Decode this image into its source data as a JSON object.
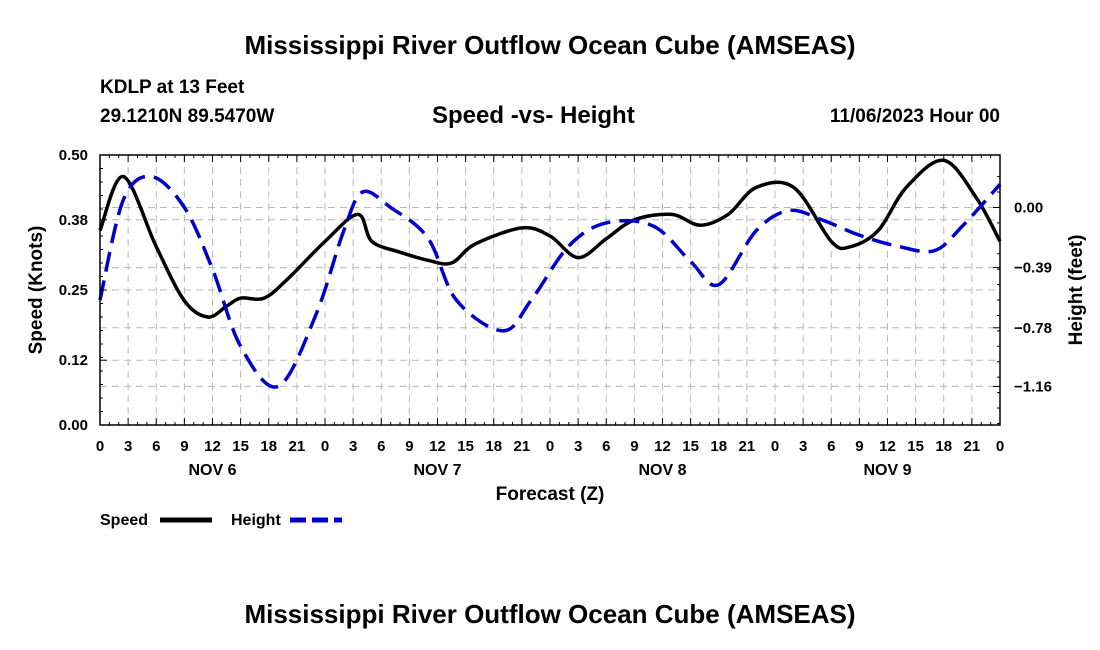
{
  "header": {
    "title": "Mississippi River Outflow Ocean Cube (AMSEAS)",
    "station": "KDLP at 13 Feet",
    "coords": "29.1210N  89.5470W",
    "datetime": "11/06/2023 Hour 00"
  },
  "footer": {
    "title": "Mississippi River Outflow Ocean Cube (AMSEAS)"
  },
  "chart_data": {
    "type": "line",
    "title": "Speed -vs- Height",
    "xlabel": "Forecast (Z)",
    "ylabel": "Speed (Knots)",
    "y2label": "Height (feet)",
    "x_tick_labels": [
      "0",
      "3",
      "6",
      "9",
      "12",
      "15",
      "18",
      "21",
      "0",
      "3",
      "6",
      "9",
      "12",
      "15",
      "18",
      "21",
      "0",
      "3",
      "6",
      "9",
      "12",
      "15",
      "18",
      "21",
      "0",
      "3",
      "6",
      "9",
      "12",
      "15",
      "18",
      "21",
      "0"
    ],
    "day_labels": [
      {
        "label": "NOV 6",
        "hour": 12
      },
      {
        "label": "NOV 7",
        "hour": 36
      },
      {
        "label": "NOV 8",
        "hour": 60
      },
      {
        "label": "NOV 9",
        "hour": 84
      }
    ],
    "xlim": [
      0,
      96
    ],
    "ylim": [
      0,
      0.5
    ],
    "y_ticks": [
      0.0,
      0.12,
      0.25,
      0.38,
      0.5
    ],
    "y_tick_labels": [
      "0.00",
      "0.12",
      "0.25",
      "0.38",
      "0.50"
    ],
    "y2lim": [
      -1.41,
      0.34
    ],
    "y2_ticks": [
      -1.16,
      -0.78,
      -0.39,
      0.0
    ],
    "y2_tick_labels": [
      "−1.16",
      "−0.78",
      "−0.39",
      "0.00"
    ],
    "grid": true,
    "legend": "bottom-left",
    "series": [
      {
        "name": "Speed",
        "axis": "left",
        "color": "#000000",
        "style": "solid",
        "x": [
          0,
          2.5,
          6,
          9,
          11.5,
          13.5,
          15,
          17.5,
          20,
          24,
          27.5,
          29,
          32,
          35,
          37.5,
          40,
          45,
          48,
          51,
          54,
          57,
          61,
          64,
          67,
          70,
          74,
          78,
          80,
          83,
          86,
          90,
          93.5,
          96
        ],
        "values": [
          0.36,
          0.46,
          0.33,
          0.23,
          0.2,
          0.22,
          0.235,
          0.235,
          0.27,
          0.34,
          0.39,
          0.34,
          0.32,
          0.305,
          0.3,
          0.335,
          0.365,
          0.35,
          0.31,
          0.345,
          0.38,
          0.39,
          0.37,
          0.39,
          0.44,
          0.44,
          0.34,
          0.33,
          0.36,
          0.44,
          0.49,
          0.42,
          0.34
        ]
      },
      {
        "name": "Height",
        "axis": "right",
        "color": "#0000cc",
        "style": "dashed",
        "x": [
          0,
          2.5,
          5.5,
          9,
          12,
          15,
          19,
          23,
          26,
          28,
          31,
          35,
          38,
          43,
          46,
          50,
          54,
          59,
          63,
          66,
          70,
          73.5,
          77,
          81,
          85,
          89,
          92,
          96
        ],
        "values": [
          -0.6,
          0.05,
          0.2,
          0.0,
          -0.4,
          -0.9,
          -1.16,
          -0.7,
          -0.15,
          0.1,
          0.0,
          -0.2,
          -0.6,
          -0.8,
          -0.6,
          -0.25,
          -0.1,
          -0.12,
          -0.35,
          -0.5,
          -0.15,
          -0.02,
          -0.08,
          -0.18,
          -0.25,
          -0.28,
          -0.12,
          0.15
        ]
      }
    ]
  }
}
